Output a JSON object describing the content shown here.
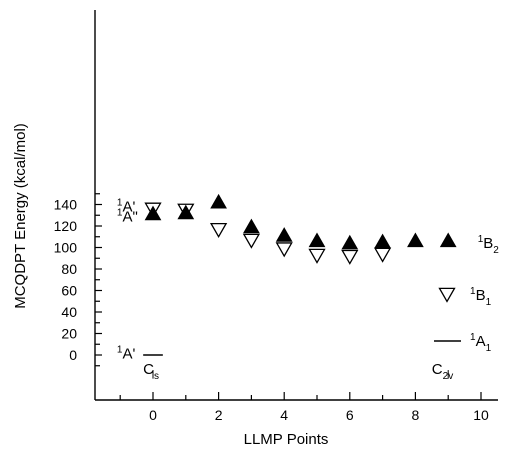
{
  "chart_data": {
    "type": "scatter",
    "xlabel": "LLMP Points",
    "ylabel": "MCQDPT Energy (kcal/mol)",
    "xlim": [
      -1.8,
      10.6
    ],
    "ylim": [
      -15,
      150
    ],
    "x_ticks": [
      0,
      2,
      4,
      6,
      8,
      10
    ],
    "y_ticks": [
      0,
      20,
      40,
      60,
      80,
      100,
      120,
      140
    ],
    "grid": false,
    "series": [
      {
        "name": "1B2",
        "marker": "filled-triangle-up",
        "color": "#000000",
        "x": [
          0,
          1,
          2,
          3,
          4,
          5,
          6,
          7,
          8,
          9
        ],
        "y": [
          131,
          132,
          142,
          119,
          111,
          106,
          104,
          105,
          106,
          106
        ]
      },
      {
        "name": "1B1",
        "marker": "open-triangle-down",
        "color": "#000000",
        "x": [
          0,
          1,
          2,
          3,
          4,
          5,
          6,
          7
        ],
        "y": [
          136,
          135,
          117,
          107,
          99,
          93,
          92,
          94
        ]
      },
      {
        "name": "1A1",
        "marker": "line",
        "color": "#000000",
        "x": [
          -0.3,
          0.3
        ],
        "y": [
          0,
          0
        ]
      }
    ],
    "annotations": [
      {
        "base": "A'",
        "sup": "1",
        "sub": "",
        "x": -1.1,
        "y": 138
      },
      {
        "base": "A\"",
        "sup": "1",
        "sub": "",
        "x": -1.1,
        "y": 129
      },
      {
        "base": "A'",
        "sup": "1",
        "sub": "",
        "x": -1.1,
        "y": 1.5
      },
      {
        "base": "C",
        "sup": "",
        "sub": "s",
        "x": -0.3,
        "y": -13
      },
      {
        "base": "C",
        "sup": "",
        "sub": "2v",
        "x": 8.5,
        "y": -13
      },
      {
        "base": "B",
        "sup": "1",
        "sub": "2",
        "x": 9.9,
        "y": 104
      }
    ],
    "legend": {
      "position": "right",
      "entries": [
        {
          "marker": "open-triangle-down",
          "base": "B",
          "sup": "1",
          "sub": "1"
        },
        {
          "marker": "line",
          "base": "A",
          "sup": "1",
          "sub": "1"
        }
      ]
    }
  }
}
